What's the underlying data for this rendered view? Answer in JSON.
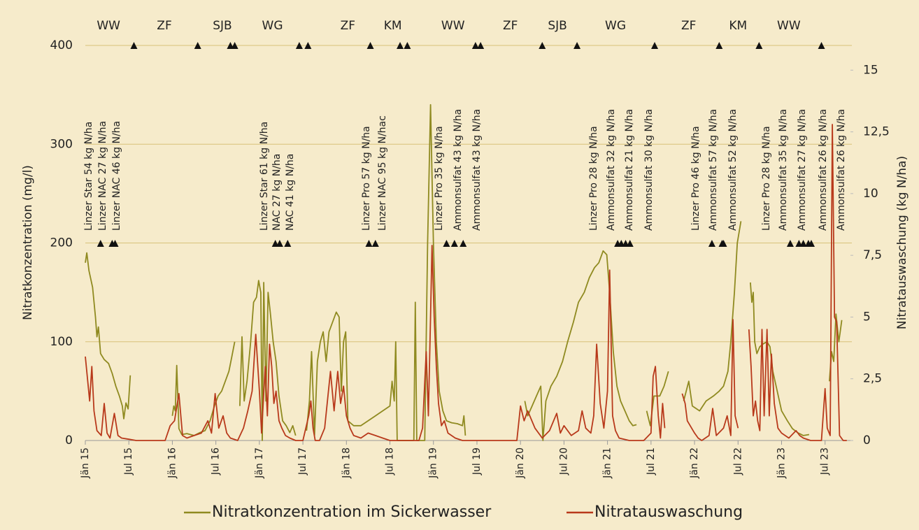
{
  "chart_data": {
    "type": "line",
    "y_label": "Nitratkonzentration (mg/l)",
    "y2_label": "Nitratauswaschung (kg N/ha)",
    "xlim": [
      0,
      105.5
    ],
    "xticks": [
      {
        "value": 0,
        "label": "Jän 15"
      },
      {
        "value": 6,
        "label": "Jul 15"
      },
      {
        "value": 12,
        "label": "Jän 16"
      },
      {
        "value": 18,
        "label": "Jul 16"
      },
      {
        "value": 24,
        "label": "Jän 17"
      },
      {
        "value": 30,
        "label": "Jul 17"
      },
      {
        "value": 36,
        "label": "Jän 18"
      },
      {
        "value": 42,
        "label": "Jul 18"
      },
      {
        "value": 48,
        "label": "Jän 19"
      },
      {
        "value": 54,
        "label": "Jul 19"
      },
      {
        "value": 60,
        "label": "Jän 20"
      },
      {
        "value": 66,
        "label": "Jul 20"
      },
      {
        "value": 72,
        "label": "Jän 21"
      },
      {
        "value": 78,
        "label": "Jul 21"
      },
      {
        "value": 84,
        "label": "Jän 22"
      },
      {
        "value": 90,
        "label": "Jul 22"
      },
      {
        "value": 96,
        "label": "Jän 23"
      },
      {
        "value": 102,
        "label": "Jul 23"
      }
    ],
    "ylim": [
      0,
      400
    ],
    "yticks": [
      0,
      100,
      200,
      300,
      400
    ],
    "y2lim": [
      0,
      16
    ],
    "y2ticks": [
      0,
      {
        "value": 2.5,
        "label": "2,5"
      },
      5,
      {
        "value": 7.5,
        "label": "7,5"
      },
      10,
      {
        "value": 12.5,
        "label": "12,5"
      },
      15
    ],
    "grid": true,
    "legend": "bottom",
    "crops": [
      {
        "label": "WW",
        "x": 3.2
      },
      {
        "label": "ZF",
        "x": 10.9
      },
      {
        "label": "SJB",
        "x": 18.9
      },
      {
        "label": "WG",
        "x": 25.8
      },
      {
        "label": "ZF",
        "x": 36.2
      },
      {
        "label": "KM",
        "x": 42.4
      },
      {
        "label": "WW",
        "x": 50.7
      },
      {
        "label": "ZF",
        "x": 58.6
      },
      {
        "label": "SJB",
        "x": 65.1
      },
      {
        "label": "WG",
        "x": 73.1
      },
      {
        "label": "ZF",
        "x": 83.2
      },
      {
        "label": "KM",
        "x": 90
      },
      {
        "label": "WW",
        "x": 97
      }
    ],
    "field_operations": [
      6.7,
      15.5,
      20,
      20.6,
      29.5,
      30.7,
      39.3,
      43.4,
      44.4,
      53.8,
      54.5,
      63,
      67.8,
      78.5,
      87.4,
      92.9,
      101.5
    ],
    "fertilizations": [
      {
        "label": "Linzer Star 54 kg N/ha",
        "x": 2.1
      },
      {
        "label": "Linzer NAC 27 kg N/ha",
        "x": 3.7
      },
      {
        "label": "Linzer NAC 46 kg N/ha",
        "x": 4.1
      },
      {
        "label": "Linzer Star 61 kg N/ha",
        "x": 26.2
      },
      {
        "label": "NAC 27 kg N/ha",
        "x": 26.8
      },
      {
        "label": "NAC 41 kg N/ha",
        "x": 27.9
      },
      {
        "label": "Linzer Pro 57 kg N/ha",
        "x": 39.1
      },
      {
        "label": "Linzer NAC 95 kg N/hac",
        "x": 40
      },
      {
        "label": "Linzer Pro 35 kg N/ha",
        "x": 49.8
      },
      {
        "label": "Ammonsulfat 43 kg N/ha",
        "x": 50.9
      },
      {
        "label": "Ammonsulfat 43 kg N/ha",
        "x": 52.1
      },
      {
        "label": "Linzer Pro 28 kg N/ha",
        "x": 73.4
      },
      {
        "label": "Ammonsulfat 32 kg N/ha",
        "x": 73.9
      },
      {
        "label": "Ammonsulfat 21 kg N/ha",
        "x": 74.5
      },
      {
        "label": "Ammonsulfat 30 kg N/ha",
        "x": 75.1
      },
      {
        "label": "Linzer Pro 46 kg N/ha",
        "x": 86.4
      },
      {
        "label": "Ammonsulfat 57 kg N/ha",
        "x": 87.8
      },
      {
        "label": "Ammonsulfat 52 kg N/ha",
        "x": 88
      },
      {
        "label": "Linzer Pro 28 kg N/ha",
        "x": 97.2
      },
      {
        "label": "Ammonsulfat 35 kg N/ha",
        "x": 98.4
      },
      {
        "label": "Ammonsulfat 27 kg N/ha",
        "x": 99
      },
      {
        "label": "Ammonsulfat 26 kg N/ha",
        "x": 99.7
      },
      {
        "label": "Ammonsulfat 26 kg N/ha",
        "x": 100.1
      }
    ],
    "series": [
      {
        "name": "Nitratkonzentration im Sickerwasser",
        "color": "#8f8a20",
        "x": [
          0,
          0.2,
          0.5,
          1,
          1.4,
          1.6,
          1.8,
          2.1,
          2.6,
          3.2,
          3.7,
          4.2,
          4.7,
          5.1,
          5.3,
          5.6,
          5.9,
          6.2,
          6.5,
          12,
          12.2,
          12.4,
          12.6,
          12.9,
          13.3,
          14,
          15,
          15.8,
          16.5,
          17.2,
          17.8,
          18.3,
          18.8,
          19.3,
          19.8,
          20.2,
          20.6,
          21,
          21.3,
          21.6,
          21.9,
          22.3,
          22.8,
          23.2,
          23.6,
          23.9,
          24.2,
          24.4,
          24.6,
          24.9,
          25.2,
          25.5,
          25.9,
          26.3,
          26.7,
          27.2,
          27.7,
          28.2,
          28.6,
          29,
          29.5,
          30.5,
          30.9,
          31.2,
          31.6,
          32,
          32.4,
          32.8,
          33.2,
          33.6,
          34.1,
          34.6,
          35,
          35.3,
          35.6,
          35.9,
          36.2,
          37,
          38,
          39,
          40,
          41,
          42,
          42.3,
          42.6,
          42.8,
          43,
          44,
          45.3,
          45.5,
          45.7,
          46.8,
          47.2,
          47.6,
          48,
          48.4,
          48.8,
          49.3,
          49.8,
          50.5,
          51.3,
          52,
          52.2,
          52.4,
          53,
          60.6,
          61,
          61.6,
          62.2,
          62.8,
          63.1,
          63.5,
          64.2,
          65,
          65.8,
          66.5,
          67.3,
          68,
          68.8,
          69.5,
          70.2,
          70.8,
          71.4,
          71.9,
          72.3,
          72.8,
          73.3,
          73.8,
          74.4,
          75,
          75.5,
          76,
          76.5,
          77.4,
          77.9,
          78.4,
          79.2,
          79.8,
          80.4,
          81,
          82.5,
          83.2,
          83.7,
          84.7,
          85.6,
          86.6,
          87.4,
          88,
          88.6,
          89,
          89.5,
          89.9,
          90.4,
          91,
          91.7,
          91.9,
          92.1,
          92.3,
          92.6,
          93,
          93.5,
          94,
          94.4,
          94.8,
          95.4,
          96,
          96.8,
          97.5,
          98.2,
          99,
          99.8,
          100.5,
          102.6,
          102.9,
          103.2,
          103.5,
          103.9,
          104.3
        ],
        "values": [
          180,
          190,
          172,
          155,
          125,
          105,
          115,
          88,
          82,
          78,
          68,
          55,
          45,
          35,
          22,
          38,
          32,
          66,
          null,
          25,
          35,
          30,
          76,
          12,
          6,
          7,
          5,
          8,
          10,
          20,
          35,
          45,
          50,
          60,
          70,
          85,
          100,
          null,
          35,
          105,
          40,
          60,
          100,
          140,
          145,
          162,
          150,
          0,
          160,
          40,
          150,
          130,
          100,
          80,
          45,
          20,
          15,
          8,
          15,
          5,
          null,
          10,
          40,
          90,
          5,
          80,
          100,
          110,
          80,
          110,
          120,
          130,
          125,
          50,
          100,
          110,
          20,
          15,
          15,
          20,
          25,
          30,
          35,
          60,
          40,
          100,
          0,
          0,
          0,
          140,
          0,
          0,
          200,
          340,
          200,
          100,
          50,
          30,
          20,
          18,
          17,
          15,
          25,
          5,
          null,
          40,
          25,
          35,
          45,
          55,
          0,
          40,
          55,
          65,
          80,
          100,
          120,
          140,
          150,
          165,
          175,
          180,
          192,
          188,
          150,
          90,
          55,
          40,
          30,
          20,
          15,
          16,
          null,
          30,
          15,
          45,
          45,
          55,
          70,
          null,
          40,
          60,
          35,
          30,
          40,
          45,
          50,
          55,
          70,
          100,
          150,
          200,
          222,
          null,
          160,
          140,
          150,
          100,
          88,
          95,
          98,
          100,
          95,
          70,
          50,
          30,
          20,
          12,
          8,
          5,
          6,
          null,
          60,
          90,
          80,
          128,
          100,
          122
        ]
      },
      {
        "name": "Nitratauswaschung",
        "color": "#b8391b",
        "axis": "y2",
        "x": [
          0,
          0.3,
          0.6,
          0.9,
          1.2,
          1.6,
          2.2,
          2.6,
          3,
          3.4,
          4,
          4.5,
          5,
          6,
          7,
          11,
          11.7,
          12.3,
          12.9,
          13.4,
          14,
          15,
          16,
          16.9,
          17.4,
          17.9,
          18.4,
          19,
          19.5,
          20,
          21,
          21.8,
          22.4,
          23,
          23.5,
          24,
          24.3,
          24.8,
          25.1,
          25.4,
          25.7,
          26,
          26.3,
          26.7,
          27.1,
          27.6,
          28.2,
          29,
          30,
          30.8,
          31.1,
          31.4,
          31.7,
          32.3,
          33,
          33.8,
          34.3,
          34.8,
          35.2,
          35.6,
          36,
          36.5,
          37,
          38,
          39,
          40,
          41,
          42,
          46,
          46.5,
          47,
          47.3,
          47.6,
          47.8,
          48.1,
          48.4,
          48.7,
          49.1,
          49.5,
          50,
          51,
          52,
          59.5,
          60,
          60.5,
          61,
          62,
          63,
          64,
          65,
          65.5,
          66,
          67,
          68,
          68.5,
          69,
          69.7,
          70.1,
          70.5,
          71,
          71.5,
          72,
          72.3,
          72.7,
          73.1,
          73.6,
          75,
          77,
          78,
          78.3,
          78.6,
          79,
          79.3,
          79.6,
          79.9,
          80.2,
          82.3,
          82.7,
          83,
          84,
          84.5,
          85,
          86,
          86.5,
          87,
          88,
          88.5,
          89,
          89.3,
          89.6,
          90,
          90.5,
          91.5,
          91.8,
          92.1,
          92.4,
          92.7,
          93,
          93.3,
          93.6,
          94,
          94.3,
          94.6,
          95,
          95.5,
          96,
          97,
          98,
          98.5,
          99,
          100,
          101.5,
          102,
          102.3,
          102.7,
          103,
          103.3,
          103.6,
          104,
          104.5,
          105
        ],
        "values": [
          3.4,
          2.5,
          1.6,
          3,
          1.2,
          0.4,
          0.2,
          1.5,
          0.3,
          0.1,
          1.1,
          0.2,
          0.1,
          0.05,
          0,
          0,
          0.6,
          0.8,
          1.9,
          0.2,
          0.1,
          0.2,
          0.3,
          0.8,
          0.3,
          1.9,
          0.5,
          1,
          0.3,
          0.1,
          0,
          0.5,
          1.2,
          2,
          4.3,
          2,
          0.3,
          3,
          1,
          3.9,
          3,
          1.5,
          2,
          0.8,
          0.5,
          0.2,
          0.1,
          0,
          0,
          1,
          1.6,
          0.5,
          0,
          0,
          0.5,
          2.8,
          1.2,
          2.8,
          1.5,
          2.2,
          1,
          0.5,
          0.2,
          0.1,
          0.3,
          0.2,
          0.1,
          0,
          0,
          0.5,
          3.6,
          1,
          5,
          7.9,
          5,
          3,
          1.5,
          0.6,
          0.8,
          0.3,
          0.1,
          0,
          0,
          1.4,
          0.8,
          1.2,
          0.5,
          0.1,
          0.4,
          1.1,
          0.3,
          0.6,
          0.2,
          0.4,
          1.2,
          0.5,
          0.3,
          1,
          3.9,
          1.5,
          0.5,
          2,
          6.9,
          1,
          0.4,
          0.1,
          0,
          0,
          0.3,
          2.6,
          3,
          1,
          0.1,
          1.5,
          0.5,
          null,
          1.9,
          1.5,
          0.8,
          0.3,
          0.1,
          0,
          0.2,
          1.3,
          0.2,
          0.5,
          1,
          0.2,
          4.9,
          1,
          0.5,
          null,
          4.5,
          3,
          1,
          1.6,
          0.8,
          0.4,
          4.5,
          1,
          4.5,
          1,
          3.5,
          1.5,
          0.5,
          0.3,
          0.1,
          0.4,
          0.2,
          0.1,
          0,
          0,
          2.1,
          0.5,
          0.2,
          12.8,
          5,
          4.8,
          0.2,
          0,
          0
        ]
      }
    ]
  }
}
